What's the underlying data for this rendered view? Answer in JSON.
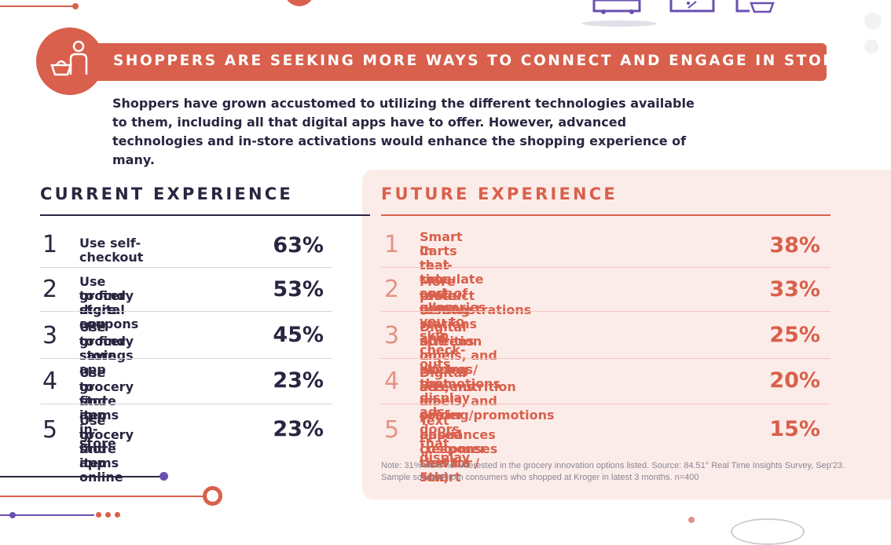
{
  "banner": {
    "title": "SHOPPERS ARE SEEKING MORE WAYS TO CONNECT AND ENGAGE IN STORE"
  },
  "intro": "Shoppers have grown accustomed to utilizing the different technologies available to them, including all that digital apps have to offer. However, advanced technologies and in-store activations would enhance the shopping experience of many.",
  "current": {
    "title": "CURRENT EXPERIENCE",
    "items": [
      {
        "rank": "1",
        "line1": "Use self-checkout",
        "line2": "",
        "pct": "63%"
      },
      {
        "rank": "2",
        "line1": "Use grocery store app",
        "line2": "to find digital coupons",
        "pct": "53%"
      },
      {
        "rank": "3",
        "line1": "Use grocery store app",
        "line2": "to find savings",
        "pct": "45%"
      },
      {
        "rank": "4",
        "line1": "Use grocery store app",
        "line2": "to find items in-store",
        "pct": "23%"
      },
      {
        "rank": "5",
        "line1": "Use grocery store app",
        "line2": "to find items online",
        "pct": "23%"
      }
    ]
  },
  "future": {
    "title": "FUTURE EXPERIENCE",
    "items": [
      {
        "rank": "1",
        "line1": "Smart Carts that calculate cost of groceries",
        "line2": "in real-time and allow you to skip check-outs",
        "pct": "38%"
      },
      {
        "rank": "2",
        "line1": "More taste-testing stations and",
        "line2": "product demonstrations",
        "pct": "33%"
      },
      {
        "rank": "3",
        "line1": "Digital screens on shelves that display ads,",
        "line2": "nutrition labels, and pricing / promotions",
        "pct": "25%"
      },
      {
        "rank": "4",
        "line1": "Digital screens on cooler doors that display",
        "line2": "ads, nutrition labels, and pricing/promotions",
        "pct": "20%"
      },
      {
        "rank": "5",
        "line1": "Text based customer service / smart",
        "line2": "appliances (responses tied for 5th)",
        "pct": "15%"
      }
    ]
  },
  "note": "Note: 31% were not interested in the grocery innovation options listed. Source: 84.51° Real Time Insights Survey, Sep'23. Sample sourced from consumers who shopped at Kroger in latest 3 months. n=400",
  "colors": {
    "accent": "#d9604c",
    "navy": "#2a2540",
    "purple": "#6a4fb0",
    "future_bg": "#fcece9"
  },
  "icons": [
    "shopper-basket-icon",
    "cart-icon",
    "tag-screen-icon",
    "basket-screen-icon"
  ]
}
